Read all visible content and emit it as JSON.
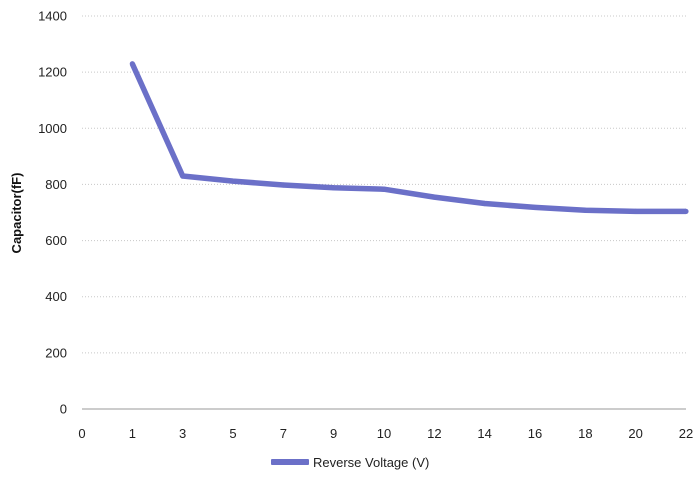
{
  "chart_data": {
    "type": "line",
    "title": "",
    "xlabel": "",
    "ylabel": "Capacitor(fF)",
    "x_ticks": [
      "0",
      "1",
      "3",
      "5",
      "7",
      "9",
      "10",
      "12",
      "14",
      "16",
      "18",
      "20",
      "22"
    ],
    "y_ticks": [
      0,
      200,
      400,
      600,
      800,
      1000,
      1200,
      1400
    ],
    "ylim": [
      0,
      1400
    ],
    "grid": "horizontal dotted",
    "legend_position": "bottom",
    "series": [
      {
        "name": "Reverse Voltage (V)",
        "color": "#6b70c8",
        "x": [
          "1",
          "3",
          "5",
          "7",
          "9",
          "10",
          "12",
          "14",
          "16",
          "18",
          "20",
          "22"
        ],
        "values": [
          1230,
          830,
          812,
          798,
          788,
          783,
          755,
          732,
          718,
          708,
          704,
          704
        ]
      }
    ]
  }
}
